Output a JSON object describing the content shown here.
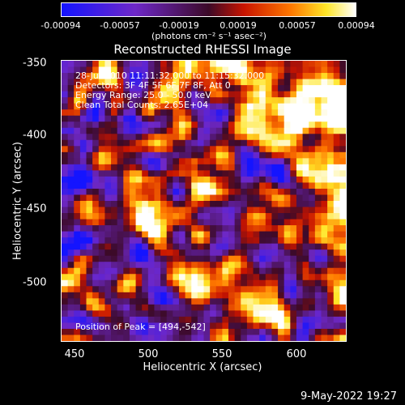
{
  "colorbar": {
    "ticks": [
      "-0.00094",
      "-0.00057",
      "-0.00019",
      "0.00019",
      "0.00057",
      "0.00094"
    ],
    "units_label": "(photons cm⁻² s⁻¹ asec⁻²)"
  },
  "annotations": {
    "time": "28-Jul-2010 11:11:32.000 to 11:15:32.000",
    "detectors": "Detectors: 3F 4F 5F 6F 7F 8F, Att 0",
    "energy": "Energy Range: 25.0 - 50.0 keV",
    "method": "Clean     Total Counts: 2.65E+04",
    "peak": "Position of Peak = [494,-542]"
  },
  "datestamp": "9-May-2022 19:27",
  "chart_data": {
    "type": "heatmap",
    "title": "Reconstructed RHESSI Image",
    "xlabel": "Heliocentric X (arcsec)",
    "ylabel": "Heliocentric Y (arcsec)",
    "xlim": [
      440,
      632
    ],
    "ylim": [
      -542,
      -348
    ],
    "xticks": [
      450,
      500,
      550,
      600
    ],
    "yticks": [
      -350,
      -400,
      -450,
      -500
    ],
    "zlim": [
      -0.00094,
      0.00094
    ],
    "colormap": "blue-purple-red-yellow-white",
    "peak": [
      494,
      -542
    ]
  }
}
